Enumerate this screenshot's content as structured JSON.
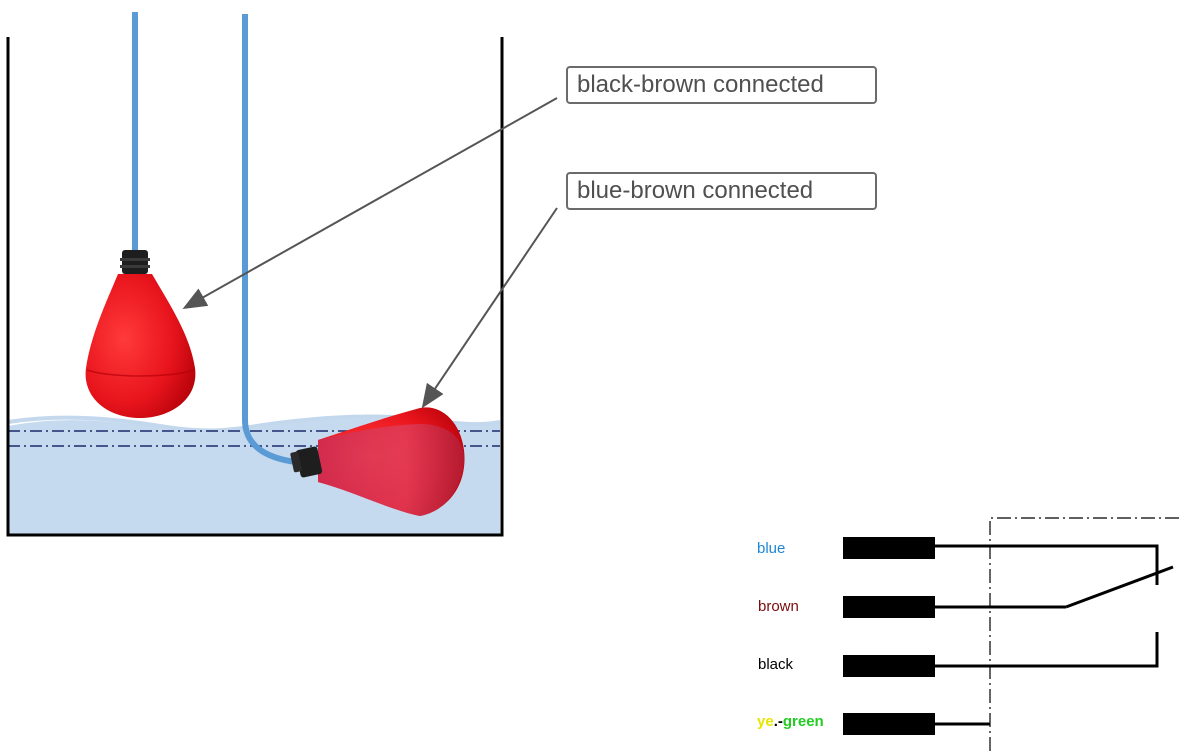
{
  "callouts": [
    {
      "text": "black-brown connected"
    },
    {
      "text": "blue-brown connected"
    }
  ],
  "wire_labels": [
    {
      "text": "blue",
      "color": "#1e88d6"
    },
    {
      "text": "brown",
      "color": "#7a0c0c"
    },
    {
      "text": "black",
      "color": "#000000"
    },
    {
      "text_part1": "ye",
      "color_part1": "#e6e600",
      "text_part2": ".-",
      "color_part2": "#000000",
      "text_part3": "green",
      "color_part3": "#22cc22"
    }
  ],
  "colors": {
    "cable": "#5b9bd5",
    "float_red": "#e8141c",
    "water": "#c5d9ef",
    "arrow": "#555555"
  }
}
